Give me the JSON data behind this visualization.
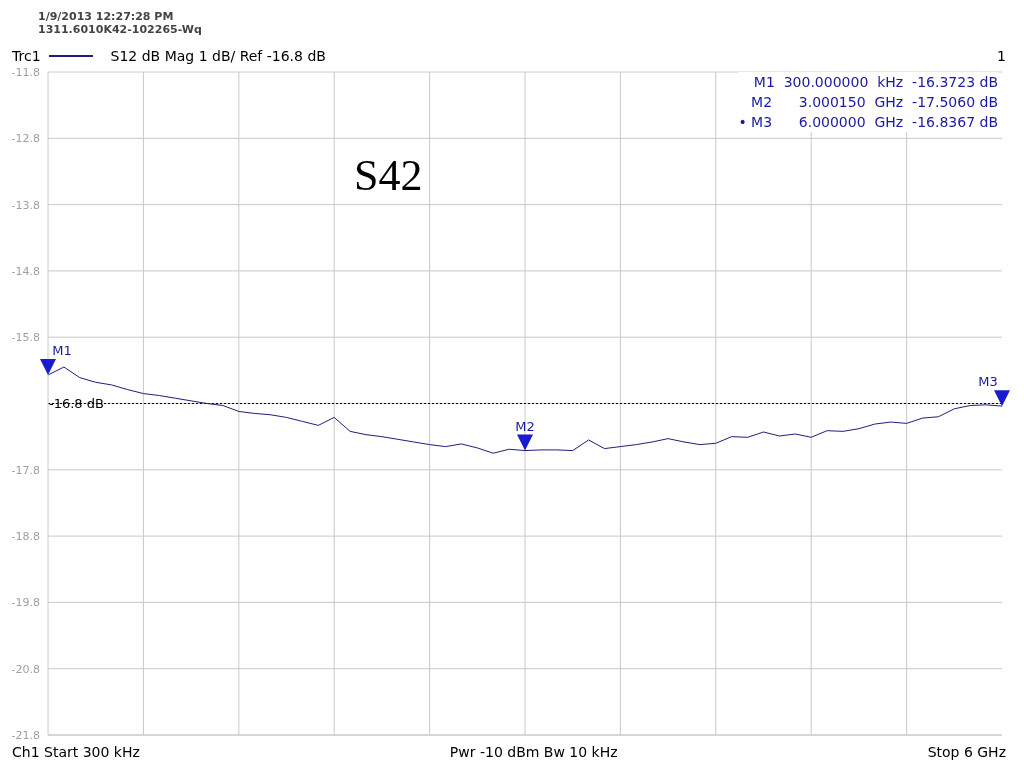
{
  "chart_data": {
    "type": "line",
    "title": "S42",
    "annotations": [
      "1/9/2013 12:27:28 PM",
      "1311.6010K42-102265-Wq",
      "S12  dB Mag  1 dB/ Ref -16.8 dB",
      "1",
      "M1  300.000000  kHz  -16.3723 dB",
      "M2      3.000150  GHz  -17.5060 dB",
      "• M3      6.000000  GHz  -16.8367 dB",
      "Ch1  Start  300 kHz",
      "Pwr  -10 dBm  Bw  10 kHz",
      "Stop  6 GHz"
    ],
    "categories": [
      null,
      null,
      null,
      null,
      null,
      null,
      null,
      null,
      null,
      null,
      null,
      null,
      null,
      null,
      null,
      null,
      null,
      null,
      null,
      null,
      null,
      null,
      null,
      null,
      null,
      null,
      null,
      null,
      null,
      null,
      null,
      null,
      null,
      null,
      null,
      null,
      null,
      null,
      null,
      null,
      null,
      null,
      null,
      null,
      null,
      null,
      null,
      null,
      null,
      null,
      null,
      null,
      null,
      null,
      null,
      null,
      null,
      null,
      null,
      null,
      null
    ],
    "series": [
      {
        "name": "Trc1",
        "color": "#1f1f7a",
        "values": [
          -16.37,
          -16.25,
          -16.41,
          -16.48,
          -16.52,
          -16.59,
          -16.65,
          -16.68,
          -16.72,
          -16.76,
          -16.8,
          -16.83,
          -16.92,
          -16.95,
          -16.97,
          -17.01,
          -17.07,
          -17.13,
          -17.01,
          -17.22,
          -17.27,
          -17.3,
          -17.34,
          -17.38,
          -17.42,
          -17.45,
          -17.41,
          -17.47,
          -17.55,
          -17.49,
          -17.51,
          -17.5,
          -17.5,
          -17.51,
          -17.35,
          -17.48,
          -17.45,
          -17.42,
          -17.38,
          -17.33,
          -17.38,
          -17.42,
          -17.4,
          -17.3,
          -17.31,
          -17.23,
          -17.29,
          -17.26,
          -17.31,
          -17.21,
          -17.22,
          -17.18,
          -17.11,
          -17.08,
          -17.1,
          -17.02,
          -17.0,
          -16.88,
          -16.83,
          -16.82,
          -16.84
        ],
        "value_labels": [
          "M1",
          null,
          null,
          null,
          null,
          null,
          null,
          null,
          null,
          null,
          null,
          null,
          null,
          null,
          null,
          null,
          null,
          null,
          null,
          null,
          null,
          null,
          null,
          null,
          null,
          null,
          null,
          null,
          null,
          null,
          "M2",
          null,
          null,
          null,
          null,
          null,
          null,
          null,
          null,
          null,
          null,
          null,
          null,
          null,
          null,
          null,
          null,
          null,
          null,
          null,
          null,
          null,
          null,
          null,
          null,
          null,
          null,
          null,
          null,
          null,
          "M3"
        ]
      }
    ],
    "ylim": [
      -21.8,
      -11.8
    ],
    "yticks": [
      -21.8,
      -20.8,
      -19.8,
      -18.8,
      -17.8,
      {
        "value": -16.8,
        "label": null
      },
      -15.8,
      -14.8,
      -13.8,
      -12.8,
      -11.8
    ],
    "tick_labels": "y",
    "ref_lines": [
      {
        "axis": "y",
        "value": -16.8,
        "label": "-16.8 dB",
        "color": "#000000",
        "line_style": "dotted"
      }
    ],
    "grid": true,
    "legend": "top left",
    "marker": "none",
    "line_style": "solid"
  }
}
